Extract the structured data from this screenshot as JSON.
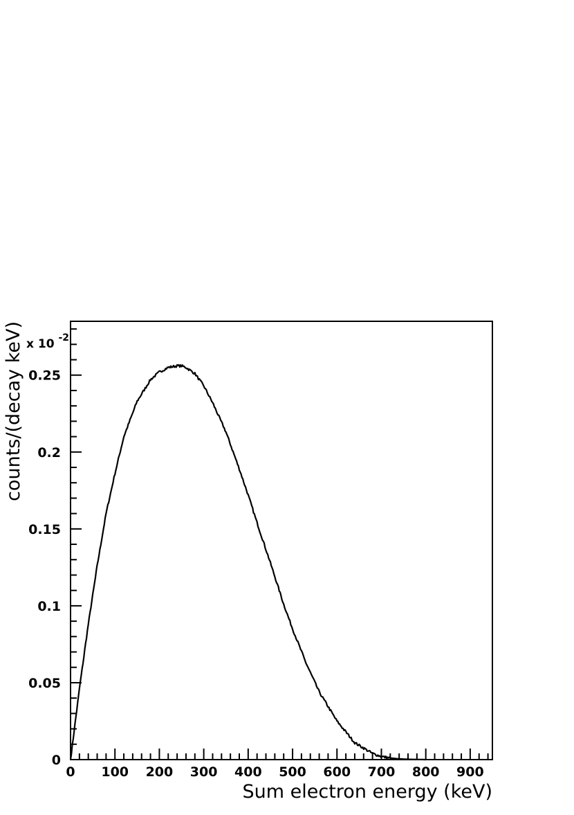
{
  "chart_data": {
    "type": "line",
    "xlabel": "Sum electron energy (keV)",
    "ylabel": "counts/(decay keV)",
    "y_multiplier_label": {
      "base": "x 10",
      "exponent": "-2"
    },
    "xlim": [
      0,
      950
    ],
    "ylim": [
      0,
      0.285
    ],
    "x_ticks": [
      "0",
      "100",
      "200",
      "300",
      "400",
      "500",
      "600",
      "700",
      "800",
      "900"
    ],
    "y_ticks": [
      "0",
      "0.05",
      "0.1",
      "0.15",
      "0.2",
      "0.25"
    ],
    "grid": false,
    "series": [
      {
        "x": [
          0,
          20,
          40,
          60,
          80,
          100,
          120,
          150,
          180,
          200,
          220,
          240,
          250,
          260,
          280,
          300,
          320,
          350,
          380,
          400,
          420,
          450,
          480,
          500,
          530,
          560,
          600,
          640,
          680,
          700,
          720,
          740,
          760,
          780,
          800
        ],
        "y": [
          0,
          0.046,
          0.088,
          0.126,
          0.16,
          0.186,
          0.21,
          0.233,
          0.247,
          0.252,
          0.255,
          0.256,
          0.256,
          0.255,
          0.251,
          0.243,
          0.232,
          0.213,
          0.189,
          0.172,
          0.154,
          0.128,
          0.101,
          0.085,
          0.063,
          0.044,
          0.025,
          0.011,
          0.004,
          0.002,
          0.001,
          0.0005,
          0.0002,
          0.0001,
          0
        ]
      }
    ]
  }
}
